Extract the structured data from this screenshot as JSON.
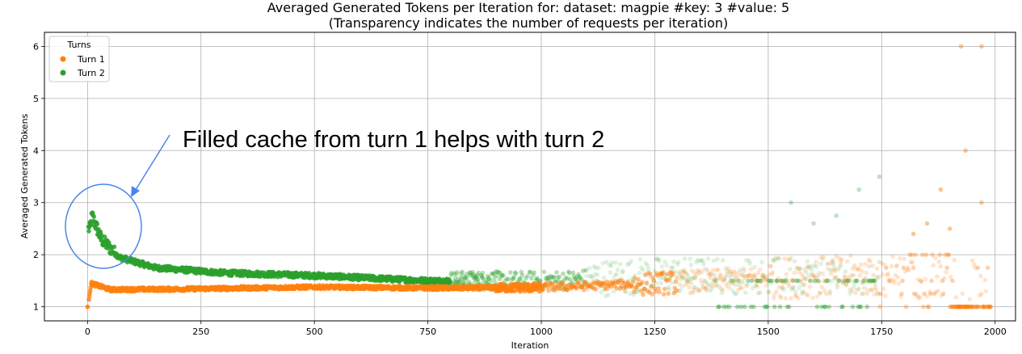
{
  "chart_data": {
    "type": "scatter",
    "title": "Averaged Generated Tokens per Iteration for: dataset: magpie #key: 3 #value: 5",
    "subtitle": "(Transparency indicates the number of requests per iteration)",
    "xlabel": "Iteration",
    "ylabel": "Averaged Generated Tokens",
    "xlim": [
      -95,
      2045
    ],
    "ylim": [
      0.73,
      6.27
    ],
    "xticks": [
      0,
      250,
      500,
      750,
      1000,
      1250,
      1500,
      1750,
      2000
    ],
    "yticks": [
      1,
      2,
      3,
      4,
      5,
      6
    ],
    "grid": true,
    "legend": {
      "title": "Turns",
      "placement": "top-left",
      "entries": [
        {
          "name": "Turn 1",
          "color": "#ff7f0e"
        },
        {
          "name": "Turn 2",
          "color": "#2ca02c"
        }
      ]
    },
    "annotation": {
      "text": "Filled cache from turn 1 helps with turn 2",
      "target": [
        30,
        2.55
      ],
      "shape": "circle",
      "color": "#4a86e8"
    },
    "series": [
      {
        "name": "Turn 1",
        "color": "#ff7f0e",
        "trend": [
          {
            "x": 0,
            "y": 1.0
          },
          {
            "x": 8,
            "y": 1.45
          },
          {
            "x": 50,
            "y": 1.33
          },
          {
            "x": 200,
            "y": 1.34
          },
          {
            "x": 500,
            "y": 1.38
          },
          {
            "x": 750,
            "y": 1.36
          },
          {
            "x": 1000,
            "y": 1.37
          },
          {
            "x": 1250,
            "y": 1.45
          },
          {
            "x": 1500,
            "y": 1.55
          },
          {
            "x": 1750,
            "y": 1.6
          },
          {
            "x": 1990,
            "y": 1.5
          }
        ],
        "outliers": [
          {
            "x": 1925,
            "y": 6.0
          },
          {
            "x": 1970,
            "y": 6.0
          },
          {
            "x": 1935,
            "y": 4.0
          },
          {
            "x": 1970,
            "y": 3.0
          },
          {
            "x": 1880,
            "y": 3.25
          },
          {
            "x": 1850,
            "y": 2.6
          },
          {
            "x": 1900,
            "y": 2.5
          },
          {
            "x": 1820,
            "y": 2.4
          }
        ]
      },
      {
        "name": "Turn 2",
        "color": "#2ca02c",
        "trend": [
          {
            "x": 5,
            "y": 2.5
          },
          {
            "x": 10,
            "y": 2.75
          },
          {
            "x": 30,
            "y": 2.3
          },
          {
            "x": 70,
            "y": 1.95
          },
          {
            "x": 150,
            "y": 1.75
          },
          {
            "x": 300,
            "y": 1.65
          },
          {
            "x": 500,
            "y": 1.6
          },
          {
            "x": 750,
            "y": 1.5
          },
          {
            "x": 1000,
            "y": 1.5
          },
          {
            "x": 1250,
            "y": 1.6
          },
          {
            "x": 1500,
            "y": 1.6
          },
          {
            "x": 1730,
            "y": 1.6
          }
        ],
        "outliers": [
          {
            "x": 1745,
            "y": 3.5
          },
          {
            "x": 1700,
            "y": 3.25
          },
          {
            "x": 1650,
            "y": 2.75
          },
          {
            "x": 1600,
            "y": 2.6
          },
          {
            "x": 1550,
            "y": 3.0
          }
        ]
      }
    ]
  }
}
